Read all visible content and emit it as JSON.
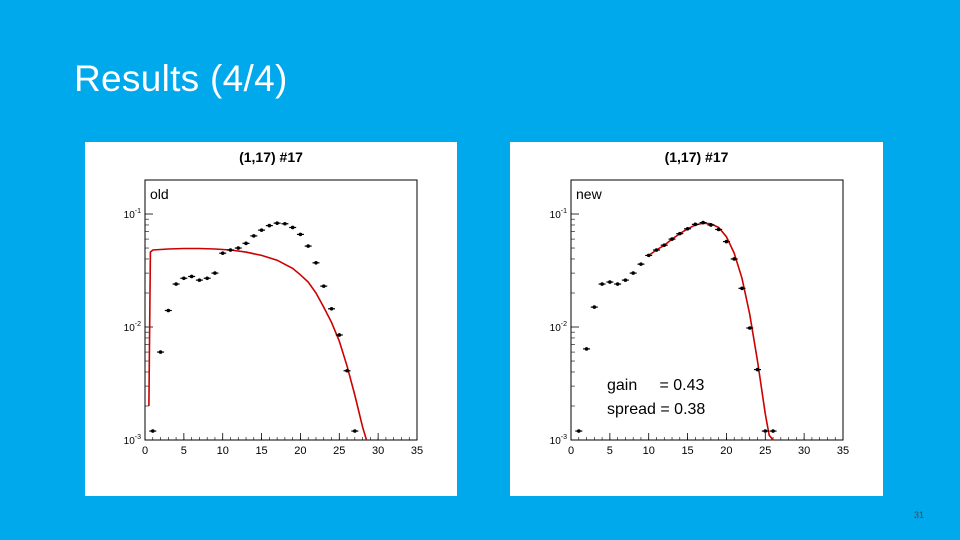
{
  "slide": {
    "title": "Results (4/4)",
    "page_number": "31"
  },
  "panels": {
    "old": {
      "label": "old"
    },
    "new": {
      "label": "new"
    }
  },
  "fit_params": {
    "gain_label": "gain",
    "gain_eq": "=",
    "gain_value": "0.43",
    "spread_label": "spread",
    "spread_eq": "=",
    "spread_value": "0.38"
  },
  "colors": {
    "background": "#00a8ec",
    "fit_line": "#cc0000",
    "points": "#000000"
  },
  "chart_data": [
    {
      "type": "scatter",
      "title": "(1,17) #17",
      "xlabel": "",
      "ylabel": "",
      "xlim": [
        0,
        35
      ],
      "ylim": [
        0.001,
        0.2
      ],
      "y_scale": "log",
      "x_ticks": [
        "0",
        "5",
        "10",
        "15",
        "20",
        "25",
        "30",
        "35"
      ],
      "y_ticks": [
        "10^-3",
        "10^-2",
        "10^-1"
      ],
      "series": [
        {
          "kind": "points",
          "x": [
            1,
            2,
            3,
            4,
            5,
            6,
            7,
            8,
            9,
            10,
            11,
            12,
            13,
            14,
            15,
            16,
            17,
            18,
            19,
            20,
            21,
            22,
            23,
            24,
            25,
            26,
            27
          ],
          "y": [
            0.0012,
            0.006,
            0.014,
            0.024,
            0.027,
            0.028,
            0.026,
            0.027,
            0.03,
            0.045,
            0.048,
            0.05,
            0.055,
            0.064,
            0.072,
            0.079,
            0.083,
            0.082,
            0.076,
            0.066,
            0.052,
            0.037,
            0.023,
            0.0145,
            0.0085,
            0.0041,
            0.0012
          ]
        },
        {
          "kind": "fit",
          "x": [
            0.5,
            0.7,
            1,
            3,
            5,
            7,
            9,
            11,
            13,
            15,
            17,
            19,
            20,
            21,
            22,
            23,
            24,
            25,
            26,
            27,
            28,
            28.5
          ],
          "y": [
            0.002,
            0.046,
            0.048,
            0.049,
            0.0495,
            0.0495,
            0.049,
            0.048,
            0.046,
            0.043,
            0.039,
            0.033,
            0.029,
            0.025,
            0.02,
            0.015,
            0.011,
            0.0075,
            0.0045,
            0.0025,
            0.0013,
            0.001
          ]
        }
      ]
    },
    {
      "type": "scatter",
      "title": "(1,17) #17",
      "xlabel": "",
      "ylabel": "",
      "xlim": [
        0,
        35
      ],
      "ylim": [
        0.001,
        0.2
      ],
      "y_scale": "log",
      "x_ticks": [
        "0",
        "5",
        "10",
        "15",
        "20",
        "25",
        "30",
        "35"
      ],
      "y_ticks": [
        "10^-3",
        "10^-2",
        "10^-1"
      ],
      "series": [
        {
          "kind": "points",
          "x": [
            1,
            2,
            3,
            4,
            5,
            6,
            7,
            8,
            9,
            10,
            11,
            12,
            13,
            14,
            15,
            16,
            17,
            18,
            19,
            20,
            21,
            22,
            23,
            24,
            25,
            26
          ],
          "y": [
            0.0012,
            0.0064,
            0.015,
            0.024,
            0.025,
            0.024,
            0.026,
            0.03,
            0.036,
            0.043,
            0.048,
            0.053,
            0.06,
            0.067,
            0.074,
            0.081,
            0.084,
            0.08,
            0.073,
            0.057,
            0.04,
            0.022,
            0.0098,
            0.0042,
            0.0012,
            0.0012
          ]
        },
        {
          "kind": "fit",
          "x": [
            10,
            11,
            12,
            13,
            14,
            15,
            16,
            17,
            18,
            19,
            20,
            21,
            22,
            23,
            24,
            25,
            25.5,
            26
          ],
          "y": [
            0.043,
            0.048,
            0.053,
            0.06,
            0.067,
            0.074,
            0.08,
            0.083,
            0.082,
            0.076,
            0.063,
            0.045,
            0.027,
            0.013,
            0.005,
            0.0017,
            0.0011,
            0.001
          ]
        }
      ]
    }
  ]
}
